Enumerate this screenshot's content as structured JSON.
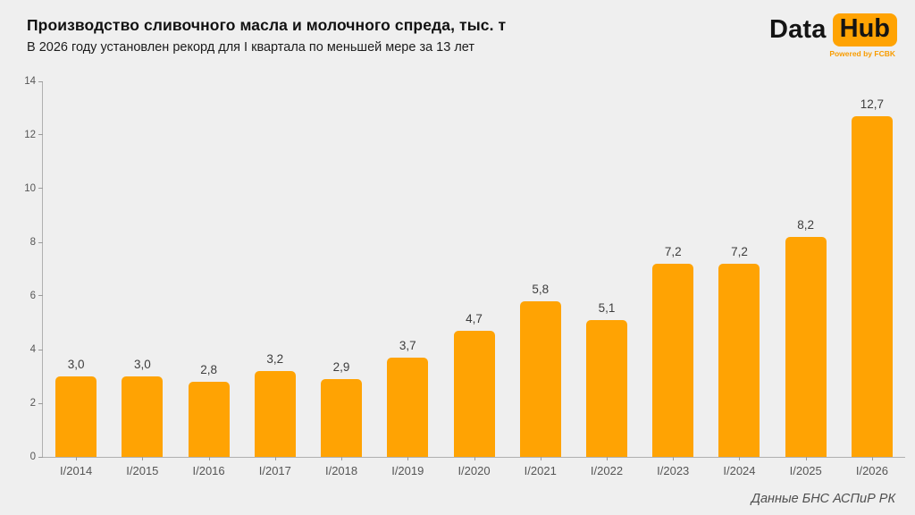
{
  "header": {
    "title": "Производство сливочного масла и молочного спреда, тыс. т",
    "subtitle": "В 2026 году установлен рекорд для I квартала по меньшей мере за 13 лет"
  },
  "logo": {
    "part1": "Data",
    "part2": "Hub",
    "tagline": "Powered by FCBK"
  },
  "source": "Данные БНС АСПиР РК",
  "colors": {
    "bar": "#ffa303",
    "background": "#efefef",
    "badge": "#ffa303"
  },
  "chart_data": {
    "type": "bar",
    "title": "Производство сливочного масла и молочного спреда, тыс. т",
    "subtitle": "В 2026 году установлен рекорд для I квартала по меньшей мере за 13 лет",
    "categories": [
      "I/2014",
      "I/2015",
      "I/2016",
      "I/2017",
      "I/2018",
      "I/2019",
      "I/2020",
      "I/2021",
      "I/2022",
      "I/2023",
      "I/2024",
      "I/2025",
      "I/2026"
    ],
    "values": [
      3.0,
      3.0,
      2.8,
      3.2,
      2.9,
      3.7,
      4.7,
      5.8,
      5.1,
      7.2,
      7.2,
      8.2,
      12.7
    ],
    "value_labels": [
      "3,0",
      "3,0",
      "2,8",
      "3,2",
      "2,9",
      "3,7",
      "4,7",
      "5,8",
      "5,1",
      "7,2",
      "7,2",
      "8,2",
      "12,7"
    ],
    "xlabel": "",
    "ylabel": "",
    "ylim": [
      0,
      14
    ],
    "yticks": [
      0,
      2,
      4,
      6,
      8,
      10,
      12,
      14
    ],
    "grid": false,
    "legend": false,
    "bar_color": "#ffa303"
  }
}
